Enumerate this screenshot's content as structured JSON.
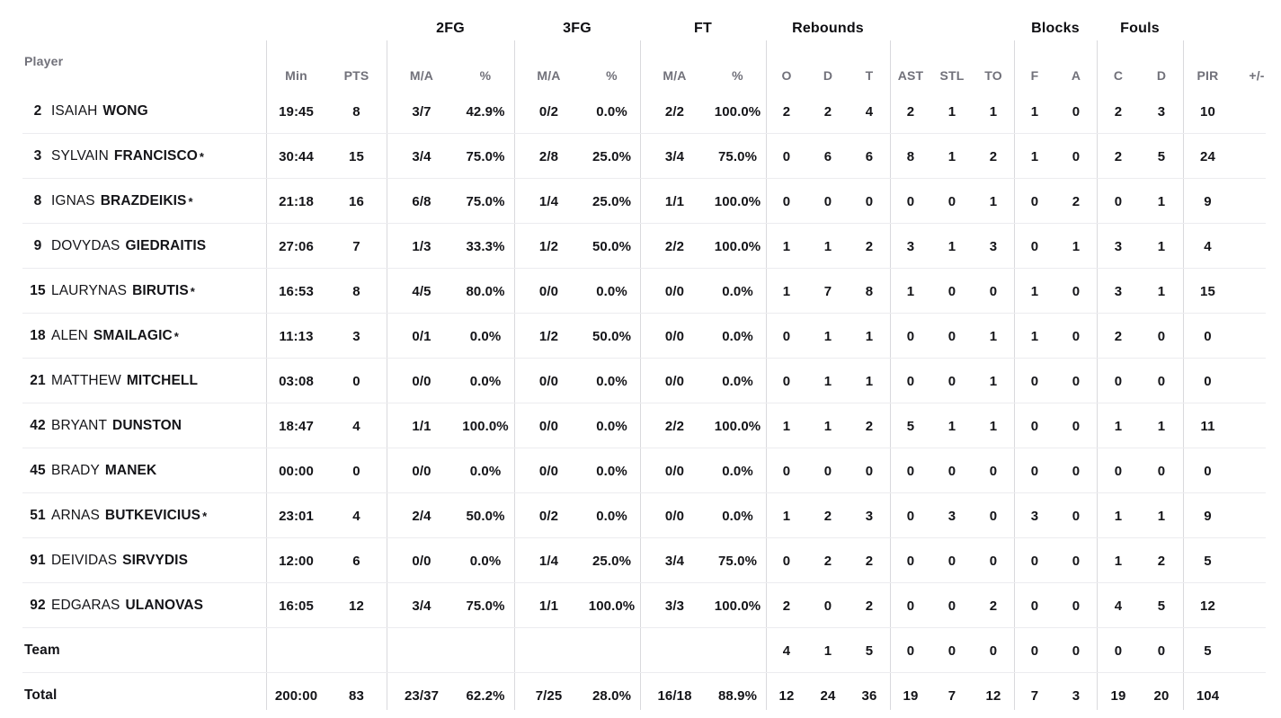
{
  "colors": {
    "text": "#141418",
    "muted_header": "#71717a",
    "divider": "#d9d9dd",
    "row_line": "#ececef"
  },
  "table": {
    "starter_marker": "*",
    "groups": {
      "fg2": "2FG",
      "fg3": "3FG",
      "ft": "FT",
      "rebounds": "Rebounds",
      "blocks": "Blocks",
      "fouls": "Fouls"
    },
    "headers": {
      "player": "Player",
      "min": "Min",
      "pts": "PTS",
      "ma2": "M/A",
      "pct2": "%",
      "ma3": "M/A",
      "pct3": "%",
      "maft": "M/A",
      "pctft": "%",
      "ro": "O",
      "rd": "D",
      "rt": "T",
      "ast": "AST",
      "stl": "STL",
      "to": "TO",
      "bf": "F",
      "ba": "A",
      "fc": "C",
      "fd": "D",
      "pir": "PIR",
      "pm": "+/-"
    },
    "rows": [
      {
        "num": "2",
        "first": "ISAIAH",
        "last": "WONG",
        "starter": false,
        "min": "19:45",
        "pts": "8",
        "ma2": "3/7",
        "pct2": "42.9%",
        "ma3": "0/2",
        "pct3": "0.0%",
        "maft": "2/2",
        "pctft": "100.0%",
        "ro": "2",
        "rd": "2",
        "rt": "4",
        "ast": "2",
        "stl": "1",
        "to": "1",
        "bf": "1",
        "ba": "0",
        "fc": "2",
        "fd": "3",
        "pir": "10",
        "pm": ""
      },
      {
        "num": "3",
        "first": "SYLVAIN",
        "last": "FRANCISCO",
        "starter": true,
        "min": "30:44",
        "pts": "15",
        "ma2": "3/4",
        "pct2": "75.0%",
        "ma3": "2/8",
        "pct3": "25.0%",
        "maft": "3/4",
        "pctft": "75.0%",
        "ro": "0",
        "rd": "6",
        "rt": "6",
        "ast": "8",
        "stl": "1",
        "to": "2",
        "bf": "1",
        "ba": "0",
        "fc": "2",
        "fd": "5",
        "pir": "24",
        "pm": ""
      },
      {
        "num": "8",
        "first": "IGNAS",
        "last": "BRAZDEIKIS",
        "starter": true,
        "min": "21:18",
        "pts": "16",
        "ma2": "6/8",
        "pct2": "75.0%",
        "ma3": "1/4",
        "pct3": "25.0%",
        "maft": "1/1",
        "pctft": "100.0%",
        "ro": "0",
        "rd": "0",
        "rt": "0",
        "ast": "0",
        "stl": "0",
        "to": "1",
        "bf": "0",
        "ba": "2",
        "fc": "0",
        "fd": "1",
        "pir": "9",
        "pm": ""
      },
      {
        "num": "9",
        "first": "DOVYDAS",
        "last": "GIEDRAITIS",
        "starter": false,
        "min": "27:06",
        "pts": "7",
        "ma2": "1/3",
        "pct2": "33.3%",
        "ma3": "1/2",
        "pct3": "50.0%",
        "maft": "2/2",
        "pctft": "100.0%",
        "ro": "1",
        "rd": "1",
        "rt": "2",
        "ast": "3",
        "stl": "1",
        "to": "3",
        "bf": "0",
        "ba": "1",
        "fc": "3",
        "fd": "1",
        "pir": "4",
        "pm": ""
      },
      {
        "num": "15",
        "first": "LAURYNAS",
        "last": "BIRUTIS",
        "starter": true,
        "min": "16:53",
        "pts": "8",
        "ma2": "4/5",
        "pct2": "80.0%",
        "ma3": "0/0",
        "pct3": "0.0%",
        "maft": "0/0",
        "pctft": "0.0%",
        "ro": "1",
        "rd": "7",
        "rt": "8",
        "ast": "1",
        "stl": "0",
        "to": "0",
        "bf": "1",
        "ba": "0",
        "fc": "3",
        "fd": "1",
        "pir": "15",
        "pm": ""
      },
      {
        "num": "18",
        "first": "ALEN",
        "last": "SMAILAGIC",
        "starter": true,
        "min": "11:13",
        "pts": "3",
        "ma2": "0/1",
        "pct2": "0.0%",
        "ma3": "1/2",
        "pct3": "50.0%",
        "maft": "0/0",
        "pctft": "0.0%",
        "ro": "0",
        "rd": "1",
        "rt": "1",
        "ast": "0",
        "stl": "0",
        "to": "1",
        "bf": "1",
        "ba": "0",
        "fc": "2",
        "fd": "0",
        "pir": "0",
        "pm": ""
      },
      {
        "num": "21",
        "first": "MATTHEW",
        "last": "MITCHELL",
        "starter": false,
        "min": "03:08",
        "pts": "0",
        "ma2": "0/0",
        "pct2": "0.0%",
        "ma3": "0/0",
        "pct3": "0.0%",
        "maft": "0/0",
        "pctft": "0.0%",
        "ro": "0",
        "rd": "1",
        "rt": "1",
        "ast": "0",
        "stl": "0",
        "to": "1",
        "bf": "0",
        "ba": "0",
        "fc": "0",
        "fd": "0",
        "pir": "0",
        "pm": ""
      },
      {
        "num": "42",
        "first": "BRYANT",
        "last": "DUNSTON",
        "starter": false,
        "min": "18:47",
        "pts": "4",
        "ma2": "1/1",
        "pct2": "100.0%",
        "ma3": "0/0",
        "pct3": "0.0%",
        "maft": "2/2",
        "pctft": "100.0%",
        "ro": "1",
        "rd": "1",
        "rt": "2",
        "ast": "5",
        "stl": "1",
        "to": "1",
        "bf": "0",
        "ba": "0",
        "fc": "1",
        "fd": "1",
        "pir": "11",
        "pm": ""
      },
      {
        "num": "45",
        "first": "BRADY",
        "last": "MANEK",
        "starter": false,
        "min": "00:00",
        "pts": "0",
        "ma2": "0/0",
        "pct2": "0.0%",
        "ma3": "0/0",
        "pct3": "0.0%",
        "maft": "0/0",
        "pctft": "0.0%",
        "ro": "0",
        "rd": "0",
        "rt": "0",
        "ast": "0",
        "stl": "0",
        "to": "0",
        "bf": "0",
        "ba": "0",
        "fc": "0",
        "fd": "0",
        "pir": "0",
        "pm": ""
      },
      {
        "num": "51",
        "first": "ARNAS",
        "last": "BUTKEVICIUS",
        "starter": true,
        "min": "23:01",
        "pts": "4",
        "ma2": "2/4",
        "pct2": "50.0%",
        "ma3": "0/2",
        "pct3": "0.0%",
        "maft": "0/0",
        "pctft": "0.0%",
        "ro": "1",
        "rd": "2",
        "rt": "3",
        "ast": "0",
        "stl": "3",
        "to": "0",
        "bf": "3",
        "ba": "0",
        "fc": "1",
        "fd": "1",
        "pir": "9",
        "pm": ""
      },
      {
        "num": "91",
        "first": "DEIVIDAS",
        "last": "SIRVYDIS",
        "starter": false,
        "min": "12:00",
        "pts": "6",
        "ma2": "0/0",
        "pct2": "0.0%",
        "ma3": "1/4",
        "pct3": "25.0%",
        "maft": "3/4",
        "pctft": "75.0%",
        "ro": "0",
        "rd": "2",
        "rt": "2",
        "ast": "0",
        "stl": "0",
        "to": "0",
        "bf": "0",
        "ba": "0",
        "fc": "1",
        "fd": "2",
        "pir": "5",
        "pm": ""
      },
      {
        "num": "92",
        "first": "EDGARAS",
        "last": "ULANOVAS",
        "starter": false,
        "min": "16:05",
        "pts": "12",
        "ma2": "3/4",
        "pct2": "75.0%",
        "ma3": "1/1",
        "pct3": "100.0%",
        "maft": "3/3",
        "pctft": "100.0%",
        "ro": "2",
        "rd": "0",
        "rt": "2",
        "ast": "0",
        "stl": "0",
        "to": "2",
        "bf": "0",
        "ba": "0",
        "fc": "4",
        "fd": "5",
        "pir": "12",
        "pm": ""
      },
      {
        "label": "Team",
        "min": "",
        "pts": "",
        "ma2": "",
        "pct2": "",
        "ma3": "",
        "pct3": "",
        "maft": "",
        "pctft": "",
        "ro": "4",
        "rd": "1",
        "rt": "5",
        "ast": "0",
        "stl": "0",
        "to": "0",
        "bf": "0",
        "ba": "0",
        "fc": "0",
        "fd": "0",
        "pir": "5",
        "pm": ""
      },
      {
        "label": "Total",
        "min": "200:00",
        "pts": "83",
        "ma2": "23/37",
        "pct2": "62.2%",
        "ma3": "7/25",
        "pct3": "28.0%",
        "maft": "16/18",
        "pctft": "88.9%",
        "ro": "12",
        "rd": "24",
        "rt": "36",
        "ast": "19",
        "stl": "7",
        "to": "12",
        "bf": "7",
        "ba": "3",
        "fc": "19",
        "fd": "20",
        "pir": "104",
        "pm": ""
      }
    ]
  }
}
